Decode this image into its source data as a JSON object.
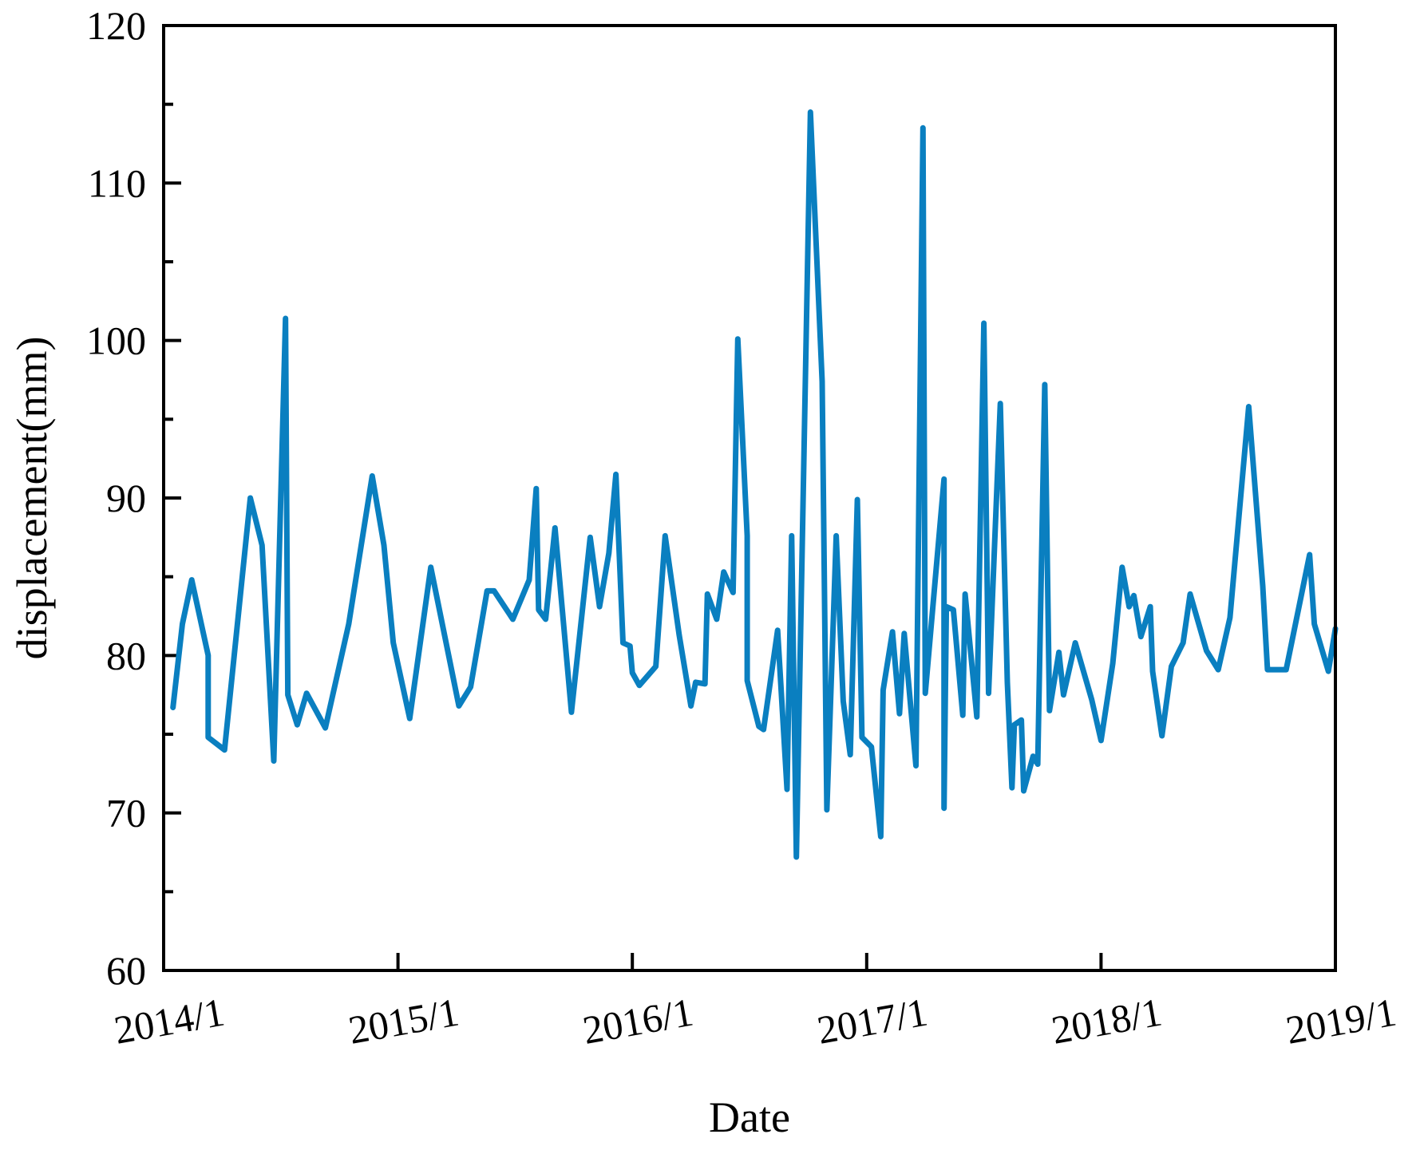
{
  "chart_data": {
    "type": "line",
    "title": "",
    "xlabel": "Date",
    "ylabel": "displacement(mm)",
    "ylim": [
      60,
      120
    ],
    "yticks": [
      60,
      70,
      80,
      90,
      100,
      110,
      120
    ],
    "y_minor_step": 5,
    "xlim": [
      "2014/1",
      "2019/1"
    ],
    "xticks": [
      "2014/1",
      "2015/1",
      "2016/1",
      "2017/1",
      "2018/1",
      "2019/1"
    ],
    "grid": false,
    "legend": null,
    "series": [
      {
        "name": "displacement",
        "color": "#0a7fc0",
        "x_year_fraction": [
          0.04,
          0.08,
          0.12,
          0.19,
          0.19,
          0.26,
          0.37,
          0.42,
          0.47,
          0.52,
          0.53,
          0.57,
          0.61,
          0.69,
          0.79,
          0.89,
          0.94,
          0.98,
          1.05,
          1.14,
          1.26,
          1.31,
          1.38,
          1.41,
          1.49,
          1.56,
          1.59,
          1.6,
          1.63,
          1.67,
          1.74,
          1.82,
          1.86,
          1.9,
          1.93,
          1.96,
          1.99,
          2.0,
          2.03,
          2.1,
          2.14,
          2.2,
          2.25,
          2.27,
          2.31,
          2.32,
          2.36,
          2.39,
          2.43,
          2.45,
          2.49,
          2.49,
          2.54,
          2.56,
          2.62,
          2.66,
          2.68,
          2.7,
          2.76,
          2.81,
          2.83,
          2.87,
          2.9,
          2.93,
          2.96,
          2.98,
          3.02,
          3.06,
          3.07,
          3.11,
          3.14,
          3.16,
          3.21,
          3.24,
          3.25,
          3.33,
          3.33,
          3.34,
          3.37,
          3.41,
          3.42,
          3.47,
          3.5,
          3.52,
          3.57,
          3.6,
          3.62,
          3.63,
          3.66,
          3.67,
          3.71,
          3.73,
          3.76,
          3.78,
          3.82,
          3.84,
          3.89,
          3.96,
          4.0,
          4.05,
          4.09,
          4.12,
          4.14,
          4.17,
          4.21,
          4.22,
          4.26,
          4.3,
          4.35,
          4.38,
          4.45,
          4.5,
          4.55,
          4.63,
          4.69,
          4.71,
          4.79,
          4.89,
          4.91,
          4.97,
          5.0
        ],
        "values": [
          76.7,
          82.0,
          84.8,
          80.0,
          74.8,
          74.0,
          90.0,
          87.0,
          73.3,
          101.4,
          77.5,
          75.6,
          77.6,
          75.4,
          82.0,
          91.4,
          87.0,
          80.8,
          76.0,
          85.6,
          76.8,
          78.0,
          84.1,
          84.1,
          82.3,
          84.8,
          90.6,
          82.9,
          82.3,
          88.1,
          76.4,
          87.5,
          83.1,
          86.5,
          91.5,
          80.8,
          80.6,
          78.9,
          78.1,
          79.3,
          87.6,
          81.3,
          76.8,
          78.3,
          78.2,
          83.9,
          82.3,
          85.3,
          84.0,
          100.1,
          87.6,
          78.4,
          75.5,
          75.3,
          81.6,
          71.5,
          87.6,
          67.2,
          114.5,
          97.4,
          70.2,
          87.6,
          77.1,
          73.7,
          89.9,
          74.8,
          74.2,
          68.5,
          77.8,
          81.5,
          76.3,
          81.4,
          73.0,
          113.5,
          77.6,
          91.2,
          70.3,
          83.1,
          82.9,
          76.2,
          83.9,
          76.1,
          101.1,
          77.6,
          96.0,
          78.3,
          71.6,
          75.6,
          75.9,
          71.4,
          73.6,
          73.1,
          97.2,
          76.5,
          80.2,
          77.5,
          80.8,
          77.2,
          74.6,
          79.5,
          85.6,
          83.1,
          83.8,
          81.2,
          83.1,
          79.0,
          74.9,
          79.3,
          80.8,
          83.9,
          80.3,
          79.1,
          82.4,
          95.8,
          84.4,
          79.1,
          79.1,
          86.4,
          82.0,
          79.0,
          81.7
        ]
      }
    ]
  }
}
